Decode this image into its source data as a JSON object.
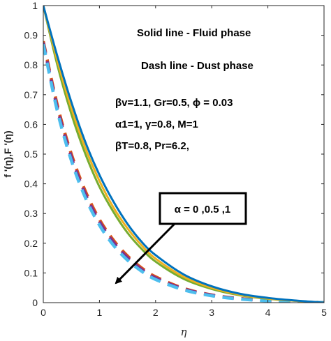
{
  "chart_data": {
    "type": "line",
    "xlabel": "η",
    "ylabel": "f '(η),F '(η)",
    "xlim": [
      0,
      5
    ],
    "ylim": [
      0,
      1
    ],
    "x_ticks": [
      "0",
      "1",
      "2",
      "3",
      "4",
      "5"
    ],
    "y_ticks": [
      "0",
      "0.1",
      "0.2",
      "0.3",
      "0.4",
      "0.5",
      "0.6",
      "0.7",
      "0.8",
      "0.9",
      "1"
    ],
    "grid": false,
    "annotations": {
      "solid_line": "Solid line - Fluid phase",
      "dash_line": "Dash line - Dust phase",
      "params_line1": "βv=1.1, Gr=0.5, ϕ = 0.03",
      "params_line2": "α1=1, γ=0.8, M=1",
      "params_line3": "βT=0.8, Pr=6.2,",
      "arrow_label": "α = 0 ,0.5 ,1"
    },
    "x": [
      0,
      0.25,
      0.5,
      0.75,
      1.0,
      1.25,
      1.5,
      1.75,
      2.0,
      2.5,
      3.0,
      3.5,
      4.0,
      4.5,
      5.0
    ],
    "series": [
      {
        "phase": "fluid",
        "color": "#0072BD",
        "style": "solid",
        "values": [
          1.0,
          0.83,
          0.675,
          0.54,
          0.43,
          0.34,
          0.265,
          0.205,
          0.16,
          0.095,
          0.055,
          0.03,
          0.016,
          0.007,
          0.0
        ]
      },
      {
        "phase": "fluid",
        "color": "#EDB120",
        "style": "solid",
        "values": [
          1.0,
          0.815,
          0.655,
          0.52,
          0.41,
          0.32,
          0.25,
          0.193,
          0.148,
          0.087,
          0.05,
          0.027,
          0.014,
          0.006,
          0.0
        ]
      },
      {
        "phase": "fluid",
        "color": "#77AC30",
        "style": "solid",
        "values": [
          1.0,
          0.8,
          0.635,
          0.5,
          0.39,
          0.305,
          0.235,
          0.181,
          0.138,
          0.08,
          0.046,
          0.025,
          0.013,
          0.006,
          0.0
        ]
      },
      {
        "phase": "dust",
        "color": "#D95319",
        "style": "dash",
        "values": [
          0.88,
          0.665,
          0.5,
          0.375,
          0.28,
          0.21,
          0.157,
          0.117,
          0.087,
          0.048,
          0.026,
          0.014,
          0.007,
          0.003,
          0.0
        ]
      },
      {
        "phase": "dust",
        "color": "#7E2F8E",
        "style": "dash",
        "values": [
          0.875,
          0.655,
          0.49,
          0.365,
          0.272,
          0.203,
          0.151,
          0.112,
          0.083,
          0.046,
          0.025,
          0.013,
          0.007,
          0.003,
          0.0
        ]
      },
      {
        "phase": "dust",
        "color": "#4DBEEE",
        "style": "dash",
        "values": [
          0.87,
          0.645,
          0.478,
          0.353,
          0.261,
          0.193,
          0.143,
          0.106,
          0.078,
          0.043,
          0.023,
          0.012,
          0.006,
          0.003,
          0.0
        ]
      }
    ]
  }
}
